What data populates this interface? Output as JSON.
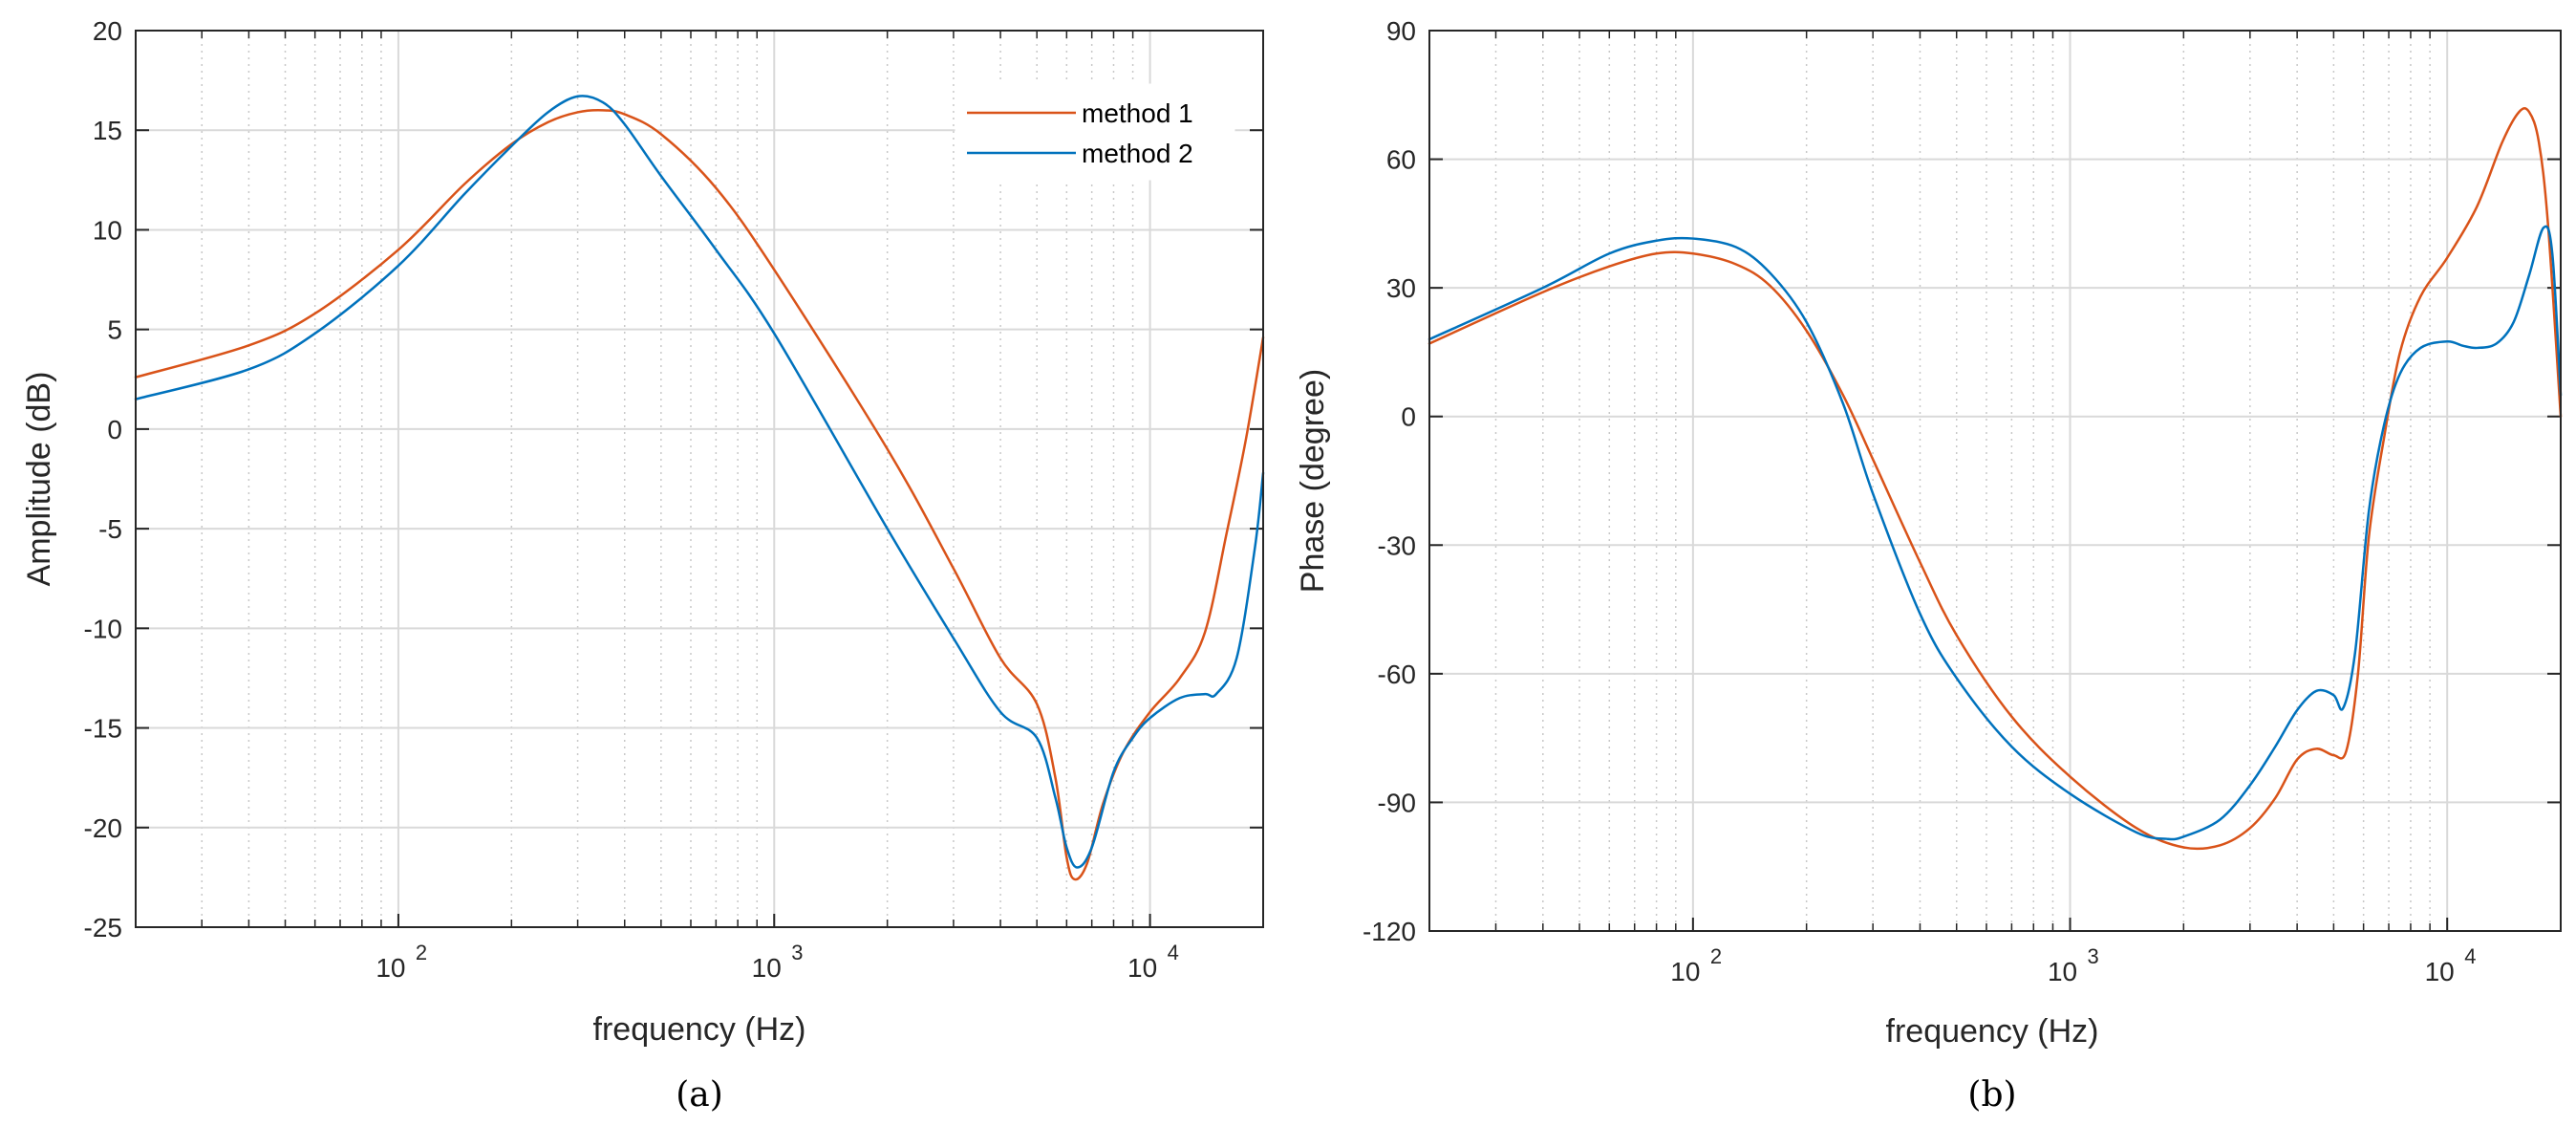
{
  "colors": {
    "method1": "#d95319",
    "method2": "#0072bd",
    "grid": "#d9d9d9",
    "axis": "#262626"
  },
  "chart_data": [
    {
      "id": "a",
      "type": "line",
      "caption": "(a)",
      "xlabel": "frequency (Hz)",
      "ylabel": "Amplitude (dB)",
      "xscale": "log",
      "xlim": [
        20,
        20000
      ],
      "ylim": [
        -25,
        20
      ],
      "yticks": [
        "-25",
        "-20",
        "-15",
        "-10",
        "-5",
        "0",
        "5",
        "10",
        "15",
        "20"
      ],
      "xticks": [
        {
          "base": "10",
          "exp": "2"
        },
        {
          "base": "10",
          "exp": "3"
        },
        {
          "base": "10",
          "exp": "4"
        }
      ],
      "grid": true,
      "legend": {
        "position": "top-right",
        "entries": [
          "method 1",
          "method 2"
        ]
      },
      "series": [
        {
          "name": "method 1",
          "color_key": "method1",
          "points": [
            [
              20,
              2.6
            ],
            [
              40,
              4.2
            ],
            [
              60,
              5.8
            ],
            [
              100,
              9.0
            ],
            [
              150,
              12.3
            ],
            [
              200,
              14.3
            ],
            [
              250,
              15.4
            ],
            [
              300,
              15.9
            ],
            [
              350,
              16.0
            ],
            [
              400,
              15.8
            ],
            [
              500,
              14.8
            ],
            [
              700,
              12.1
            ],
            [
              1000,
              8.0
            ],
            [
              2000,
              -1.0
            ],
            [
              3000,
              -7.0
            ],
            [
              4000,
              -11.5
            ],
            [
              5000,
              -13.8
            ],
            [
              5600,
              -17.5
            ],
            [
              6000,
              -21.5
            ],
            [
              6300,
              -22.6
            ],
            [
              6800,
              -21.8
            ],
            [
              7500,
              -18.8
            ],
            [
              8500,
              -16.2
            ],
            [
              10000,
              -14.2
            ],
            [
              12000,
              -12.5
            ],
            [
              14000,
              -10.2
            ],
            [
              16000,
              -5.2
            ],
            [
              18000,
              -0.5
            ],
            [
              20000,
              4.6
            ]
          ]
        },
        {
          "name": "method 2",
          "color_key": "method2",
          "points": [
            [
              20,
              1.5
            ],
            [
              40,
              3.0
            ],
            [
              60,
              4.8
            ],
            [
              100,
              8.2
            ],
            [
              150,
              11.8
            ],
            [
              200,
              14.2
            ],
            [
              250,
              15.9
            ],
            [
              300,
              16.7
            ],
            [
              350,
              16.4
            ],
            [
              400,
              15.3
            ],
            [
              500,
              12.7
            ],
            [
              700,
              9.0
            ],
            [
              1000,
              4.8
            ],
            [
              2000,
              -5.0
            ],
            [
              3000,
              -10.5
            ],
            [
              4000,
              -14.2
            ],
            [
              5000,
              -15.5
            ],
            [
              5600,
              -18.5
            ],
            [
              6000,
              -21.0
            ],
            [
              6400,
              -22.0
            ],
            [
              7000,
              -21.0
            ],
            [
              8000,
              -17.2
            ],
            [
              9000,
              -15.5
            ],
            [
              10000,
              -14.5
            ],
            [
              12000,
              -13.5
            ],
            [
              14000,
              -13.3
            ],
            [
              15000,
              -13.3
            ],
            [
              17000,
              -11.5
            ],
            [
              19000,
              -6.0
            ],
            [
              20000,
              -2.2
            ]
          ]
        }
      ]
    },
    {
      "id": "b",
      "type": "line",
      "caption": "(b)",
      "xlabel": "frequency (Hz)",
      "ylabel": "Phase (degree)",
      "xscale": "log",
      "xlim": [
        20,
        20000
      ],
      "ylim": [
        -120,
        90
      ],
      "yticks": [
        "-120",
        "-90",
        "-60",
        "-30",
        "0",
        "30",
        "60",
        "90"
      ],
      "xticks": [
        {
          "base": "10",
          "exp": "2"
        },
        {
          "base": "10",
          "exp": "3"
        },
        {
          "base": "10",
          "exp": "4"
        }
      ],
      "grid": true,
      "series": [
        {
          "name": "method 1",
          "color_key": "method1",
          "points": [
            [
              20,
              17
            ],
            [
              40,
              29
            ],
            [
              60,
              35
            ],
            [
              80,
              38
            ],
            [
              100,
              38
            ],
            [
              130,
              35.5
            ],
            [
              160,
              30.5
            ],
            [
              200,
              20
            ],
            [
              250,
              5
            ],
            [
              300,
              -10
            ],
            [
              400,
              -34
            ],
            [
              500,
              -51
            ],
            [
              700,
              -70
            ],
            [
              1000,
              -84
            ],
            [
              1500,
              -96
            ],
            [
              2000,
              -100.5
            ],
            [
              2500,
              -100
            ],
            [
              3000,
              -96
            ],
            [
              3500,
              -89
            ],
            [
              4000,
              -80
            ],
            [
              4500,
              -77.5
            ],
            [
              5000,
              -79
            ],
            [
              5400,
              -78
            ],
            [
              5800,
              -60
            ],
            [
              6200,
              -28
            ],
            [
              6800,
              -5
            ],
            [
              7500,
              15
            ],
            [
              8500,
              28
            ],
            [
              10000,
              37
            ],
            [
              12000,
              49
            ],
            [
              14000,
              64
            ],
            [
              15500,
              71
            ],
            [
              16500,
              71
            ],
            [
              17500,
              64
            ],
            [
              18500,
              45
            ],
            [
              20000,
              0
            ]
          ]
        },
        {
          "name": "method 2",
          "color_key": "method2",
          "points": [
            [
              20,
              18
            ],
            [
              40,
              30
            ],
            [
              60,
              38
            ],
            [
              80,
              41
            ],
            [
              100,
              41.5
            ],
            [
              130,
              39.5
            ],
            [
              160,
              33.5
            ],
            [
              200,
              22
            ],
            [
              250,
              3
            ],
            [
              300,
              -18
            ],
            [
              400,
              -46
            ],
            [
              500,
              -61
            ],
            [
              700,
              -77
            ],
            [
              1000,
              -88
            ],
            [
              1500,
              -97
            ],
            [
              1800,
              -98.5
            ],
            [
              2000,
              -98
            ],
            [
              2500,
              -94
            ],
            [
              3000,
              -86
            ],
            [
              3500,
              -77
            ],
            [
              4000,
              -68.5
            ],
            [
              4500,
              -64
            ],
            [
              5000,
              -65
            ],
            [
              5300,
              -68
            ],
            [
              5700,
              -55
            ],
            [
              6200,
              -22
            ],
            [
              6800,
              -2
            ],
            [
              7500,
              10
            ],
            [
              8500,
              16
            ],
            [
              10000,
              17.5
            ],
            [
              11000,
              16.5
            ],
            [
              12000,
              16
            ],
            [
              13500,
              17
            ],
            [
              15000,
              22
            ],
            [
              16500,
              33
            ],
            [
              18000,
              44
            ],
            [
              19000,
              38
            ],
            [
              20000,
              5
            ]
          ]
        }
      ]
    }
  ]
}
